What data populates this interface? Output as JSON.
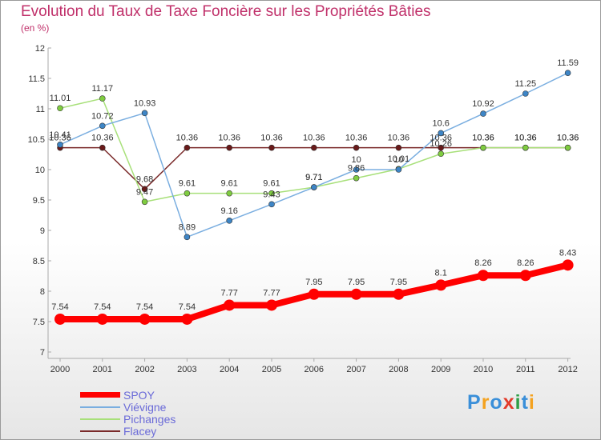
{
  "title": "Evolution du Taux de Taxe Foncière sur les Propriétés Bâties",
  "subtitle": "(en %)",
  "logo": {
    "text": "Proxiti",
    "colors": [
      "#3a8fd9",
      "#f4a21f",
      "#3a8fd9",
      "#e23a2a",
      "#2e9e46",
      "#3a8fd9",
      "#f4a21f"
    ]
  },
  "chart_data": {
    "type": "line",
    "title": "Evolution du Taux de Taxe Foncière sur les Propriétés Bâties",
    "ylabel": "(en %)",
    "xlabel": "",
    "x": [
      "2000",
      "2001",
      "2002",
      "2003",
      "2004",
      "2005",
      "2006",
      "2007",
      "2008",
      "2009",
      "2010",
      "2011",
      "2012"
    ],
    "y_ticks": [
      "7",
      "7.5",
      "8",
      "8.5",
      "9",
      "9.5",
      "10",
      "10.5",
      "11",
      "11.5",
      "12"
    ],
    "ylim": [
      7,
      12
    ],
    "grid": false,
    "legend": "bottom-left",
    "series": [
      {
        "name": "Flacey",
        "color": "#7a2a2a",
        "marker": "#6a1a1a",
        "values": [
          10.36,
          10.36,
          9.68,
          10.36,
          10.36,
          10.36,
          10.36,
          10.36,
          10.36,
          10.36,
          10.36,
          10.36,
          10.36
        ],
        "labels": [
          "10.36",
          "10.36",
          "9.68",
          "10.36",
          "10.36",
          "10.36",
          "10.36",
          "10.36",
          "10.36",
          "10.36",
          "10.36",
          "10.36",
          "10.36"
        ]
      },
      {
        "name": "Pichanges",
        "color": "#a8e07a",
        "marker": "#7fcc40",
        "values": [
          11.01,
          11.17,
          9.47,
          9.61,
          9.61,
          9.61,
          9.71,
          9.86,
          10.01,
          10.26,
          10.36,
          10.36,
          10.36
        ],
        "labels": [
          "11.01",
          "11.17",
          "9.47",
          "9.61",
          "9.61",
          "9.61",
          "9.71",
          "9.86",
          "10.01",
          "10.26",
          "10.36",
          "10.36",
          "10.36"
        ]
      },
      {
        "name": "Viévigne",
        "color": "#7aaee0",
        "marker": "#3d85c6",
        "values": [
          10.41,
          10.72,
          10.93,
          8.89,
          9.16,
          9.43,
          9.71,
          10,
          10,
          10.6,
          10.92,
          11.25,
          11.59
        ],
        "labels": [
          "10.41",
          "10.72",
          "10.93",
          "8.89",
          "9.16",
          "9.43",
          "9.71",
          "10",
          "10",
          "10.6",
          "10.92",
          "11.25",
          "11.59"
        ]
      },
      {
        "name": "SPOY",
        "color": "#ff0000",
        "marker": "#ff0000",
        "values": [
          7.54,
          7.54,
          7.54,
          7.54,
          7.77,
          7.77,
          7.95,
          7.95,
          7.95,
          8.1,
          8.26,
          8.26,
          8.43
        ],
        "labels": [
          "7.54",
          "7.54",
          "7.54",
          "7.54",
          "7.77",
          "7.77",
          "7.95",
          "7.95",
          "7.95",
          "8.1",
          "8.26",
          "8.26",
          "8.43"
        ]
      }
    ]
  },
  "legend": [
    {
      "name": "SPOY",
      "color": "#ff0000",
      "text_color": "#6a6ad8"
    },
    {
      "name": "Viévigne",
      "color": "#7aaee0",
      "text_color": "#6a6ad8"
    },
    {
      "name": "Pichanges",
      "color": "#a8e07a",
      "text_color": "#6a6ad8"
    },
    {
      "name": "Flacey",
      "color": "#7a2a2a",
      "text_color": "#6a6ad8"
    }
  ]
}
